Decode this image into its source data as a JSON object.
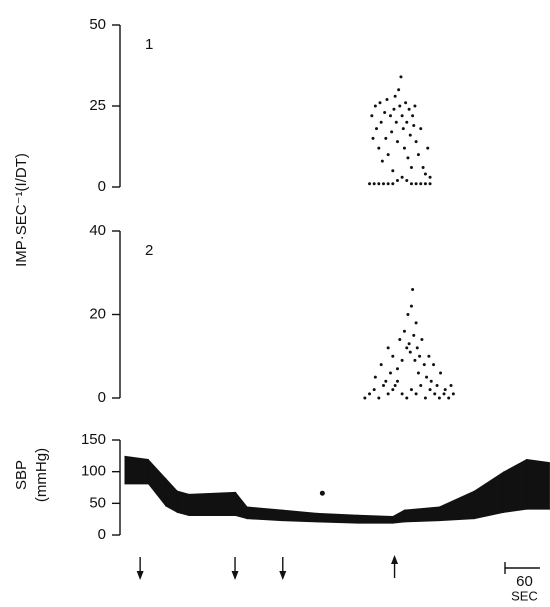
{
  "y_label": "IMP·SEC⁻¹(I/DT)",
  "chart_data": [
    {
      "type": "scatter",
      "panel_label": "1",
      "color": "#111",
      "xlim": [
        0,
        730
      ],
      "ylim": [
        0,
        50
      ],
      "yticks": [
        0,
        25,
        50
      ],
      "x": [
        420,
        428,
        436,
        444,
        452,
        460,
        468,
        476,
        484,
        492,
        500,
        508,
        516,
        524,
        424,
        426,
        430,
        432,
        436,
        438,
        440,
        442,
        446,
        448,
        450,
        452,
        456,
        458,
        460,
        462,
        464,
        466,
        468,
        470,
        472,
        474,
        476,
        478,
        480,
        482,
        484,
        486,
        488,
        490,
        492,
        494,
        496,
        498,
        500,
        504,
        508,
        512,
        516,
        520,
        524
      ],
      "values": [
        1,
        1,
        1,
        1,
        1,
        1,
        2,
        3,
        2,
        1,
        1,
        1,
        1,
        1,
        22,
        15,
        25,
        18,
        12,
        26,
        20,
        8,
        23,
        15,
        27,
        10,
        22,
        17,
        5,
        24,
        28,
        20,
        14,
        30,
        25,
        34,
        22,
        18,
        12,
        26,
        20,
        9,
        24,
        16,
        6,
        22,
        19,
        25,
        14,
        10,
        18,
        6,
        4,
        12,
        3
      ]
    },
    {
      "type": "scatter",
      "panel_label": "2",
      "color": "#111",
      "xlim": [
        0,
        730
      ],
      "ylim": [
        0,
        40
      ],
      "yticks": [
        0,
        20,
        40
      ],
      "x": [
        412,
        420,
        428,
        436,
        444,
        452,
        460,
        468,
        476,
        484,
        492,
        500,
        508,
        516,
        524,
        532,
        540,
        548,
        556,
        564,
        430,
        440,
        448,
        452,
        456,
        460,
        464,
        468,
        472,
        476,
        480,
        484,
        486,
        488,
        490,
        492,
        494,
        496,
        498,
        500,
        502,
        504,
        506,
        510,
        514,
        518,
        522,
        526,
        530,
        536,
        542,
        550,
        560
      ],
      "values": [
        0,
        1,
        2,
        0,
        3,
        1,
        2,
        4,
        1,
        0,
        2,
        1,
        3,
        0,
        2,
        1,
        0,
        1,
        0,
        1,
        5,
        8,
        4,
        12,
        6,
        10,
        3,
        7,
        14,
        9,
        16,
        12,
        20,
        13,
        11,
        22,
        26,
        15,
        9,
        18,
        12,
        6,
        10,
        14,
        8,
        5,
        10,
        4,
        8,
        3,
        6,
        2,
        3
      ]
    },
    {
      "type": "band",
      "y_label": [
        "SBP",
        "(mmHg)"
      ],
      "color": "#111",
      "xlim": [
        0,
        730
      ],
      "ylim": [
        0,
        150
      ],
      "yticks": [
        0,
        50,
        100,
        150
      ],
      "x": [
        0,
        40,
        70,
        90,
        110,
        190,
        210,
        270,
        330,
        400,
        460,
        480,
        540,
        600,
        650,
        690,
        729
      ],
      "low": [
        80,
        80,
        45,
        35,
        30,
        30,
        25,
        22,
        20,
        18,
        18,
        20,
        22,
        25,
        35,
        40,
        40
      ],
      "high": [
        125,
        120,
        90,
        70,
        65,
        68,
        45,
        40,
        35,
        32,
        30,
        40,
        45,
        70,
        100,
        120,
        115
      ],
      "point": {
        "x": 339,
        "value": 66
      },
      "events": [
        {
          "x": 26,
          "direction": "down"
        },
        {
          "x": 189,
          "direction": "down"
        },
        {
          "x": 271,
          "direction": "down"
        },
        {
          "x": 463,
          "direction": "up"
        }
      ],
      "scale_bar": {
        "value": 60,
        "label": "60",
        "unit": "SEC"
      }
    }
  ]
}
